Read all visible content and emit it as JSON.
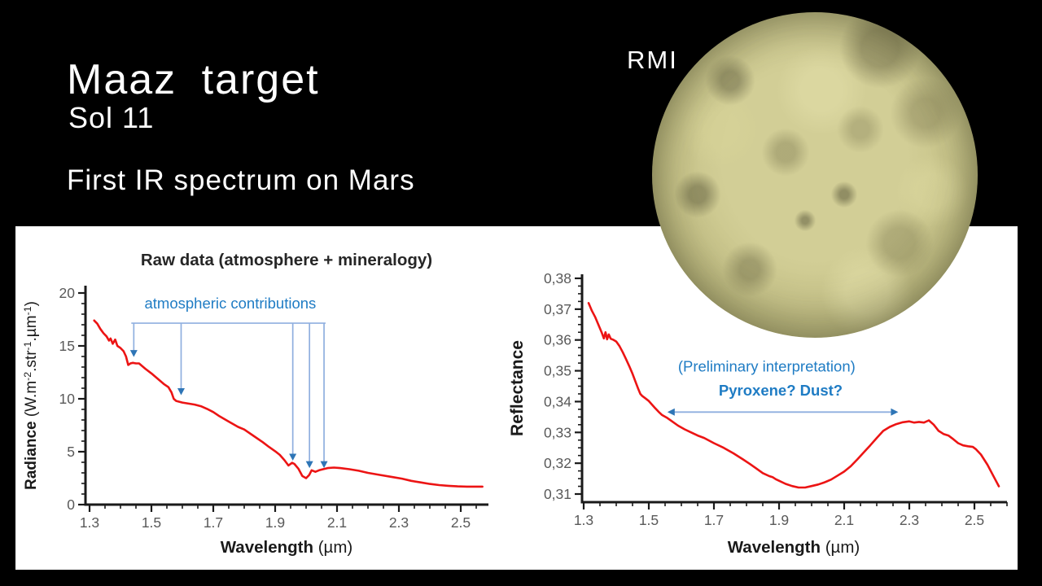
{
  "slide": {
    "title": "Maaz target",
    "subtitle": "Sol 11",
    "tagline": "First IR spectrum on Mars",
    "image_label": "RMI"
  },
  "colors": {
    "background": "#000000",
    "panel": "#ffffff",
    "text_white": "#ffffff",
    "curve_red": "#EC1414",
    "annotation_blue": "#1F7CC4",
    "annotation_light_blue": "#8FAFDF",
    "arrowhead_blue": "#2E75B6",
    "axis_black": "#1a1a1a",
    "tick_gray": "#595959",
    "title_dark": "#262626"
  },
  "chart_data": [
    {
      "type": "line",
      "title": "Raw data (atmosphere + mineralogy)",
      "xlabel_runs": [
        {
          "t": "Wavelength",
          "b": 1
        },
        {
          "t": " (µm)"
        }
      ],
      "ylabel_runs": [
        {
          "t": "Radiance",
          "b": 1
        },
        {
          "t": " (W.m"
        },
        {
          "t": "-2",
          "s": 1
        },
        {
          "t": ".str"
        },
        {
          "t": "-1",
          "s": 1
        },
        {
          "t": ".µm"
        },
        {
          "t": "-1",
          "s": 1
        },
        {
          "t": ")"
        }
      ],
      "xlim": [
        1.3,
        2.59
      ],
      "ylim": [
        0,
        20
      ],
      "xticks": [
        1.3,
        1.5,
        1.7,
        1.9,
        2.1,
        2.3,
        2.5
      ],
      "xtick_labels": [
        "1.3",
        "1.5",
        "1.7",
        "1.9",
        "2.1",
        "2.3",
        "2.5"
      ],
      "yticks": [
        0,
        5,
        10,
        15,
        20
      ],
      "ytick_labels": [
        "0",
        "5",
        "10",
        "15",
        "20"
      ],
      "x_minor_step": 0.05,
      "y_minor_step": 1,
      "legend": "none",
      "grid": false,
      "series": [
        {
          "name": "raw radiance spectrum",
          "points": [
            [
              1.315,
              17.4
            ],
            [
              1.325,
              17.1
            ],
            [
              1.335,
              16.6
            ],
            [
              1.345,
              16.2
            ],
            [
              1.355,
              15.9
            ],
            [
              1.363,
              15.5
            ],
            [
              1.368,
              15.7
            ],
            [
              1.375,
              15.2
            ],
            [
              1.383,
              15.6
            ],
            [
              1.39,
              15.0
            ],
            [
              1.4,
              14.8
            ],
            [
              1.41,
              14.5
            ],
            [
              1.418,
              14.0
            ],
            [
              1.425,
              13.2
            ],
            [
              1.432,
              13.35
            ],
            [
              1.44,
              13.4
            ],
            [
              1.45,
              13.35
            ],
            [
              1.46,
              13.35
            ],
            [
              1.47,
              13.1
            ],
            [
              1.48,
              12.85
            ],
            [
              1.5,
              12.4
            ],
            [
              1.52,
              11.9
            ],
            [
              1.54,
              11.4
            ],
            [
              1.555,
              11.1
            ],
            [
              1.565,
              10.6
            ],
            [
              1.572,
              10.0
            ],
            [
              1.58,
              9.8
            ],
            [
              1.6,
              9.65
            ],
            [
              1.62,
              9.55
            ],
            [
              1.64,
              9.45
            ],
            [
              1.66,
              9.3
            ],
            [
              1.68,
              9.05
            ],
            [
              1.7,
              8.75
            ],
            [
              1.72,
              8.35
            ],
            [
              1.75,
              7.85
            ],
            [
              1.78,
              7.35
            ],
            [
              1.8,
              7.1
            ],
            [
              1.83,
              6.5
            ],
            [
              1.86,
              5.9
            ],
            [
              1.88,
              5.45
            ],
            [
              1.9,
              5.05
            ],
            [
              1.915,
              4.7
            ],
            [
              1.93,
              4.2
            ],
            [
              1.943,
              3.7
            ],
            [
              1.955,
              3.95
            ],
            [
              1.962,
              3.85
            ],
            [
              1.975,
              3.4
            ],
            [
              1.988,
              2.7
            ],
            [
              2.0,
              2.5
            ],
            [
              2.01,
              2.8
            ],
            [
              2.018,
              3.25
            ],
            [
              2.03,
              3.1
            ],
            [
              2.042,
              3.25
            ],
            [
              2.055,
              3.35
            ],
            [
              2.07,
              3.45
            ],
            [
              2.09,
              3.5
            ],
            [
              2.11,
              3.45
            ],
            [
              2.14,
              3.35
            ],
            [
              2.17,
              3.2
            ],
            [
              2.2,
              3.0
            ],
            [
              2.24,
              2.8
            ],
            [
              2.28,
              2.6
            ],
            [
              2.31,
              2.45
            ],
            [
              2.34,
              2.25
            ],
            [
              2.37,
              2.1
            ],
            [
              2.4,
              1.95
            ],
            [
              2.43,
              1.85
            ],
            [
              2.46,
              1.78
            ],
            [
              2.49,
              1.72
            ],
            [
              2.52,
              1.7
            ],
            [
              2.55,
              1.7
            ],
            [
              2.57,
              1.7
            ]
          ]
        }
      ],
      "annotation": {
        "label": {
          "text": "atmospheric contributions",
          "x": 1.755,
          "y": 18.55
        },
        "bracket": {
          "y": 17.15,
          "x1": 1.435,
          "x2": 2.063
        },
        "arrows": [
          {
            "x": 1.443,
            "tip": 13.95
          },
          {
            "x": 1.596,
            "tip": 10.35
          },
          {
            "x": 1.957,
            "tip": 4.15
          },
          {
            "x": 2.011,
            "tip": 3.45
          },
          {
            "x": 2.058,
            "tip": 3.45
          }
        ]
      }
    },
    {
      "type": "line",
      "title": "",
      "xlabel_runs": [
        {
          "t": "Wavelength",
          "b": 1
        },
        {
          "t": " (µm)"
        }
      ],
      "ylabel_runs": [
        {
          "t": "Reflectance",
          "b": 1
        }
      ],
      "xlim": [
        1.3,
        2.6
      ],
      "ylim": [
        0.31,
        0.38
      ],
      "xticks": [
        1.3,
        1.5,
        1.7,
        1.9,
        2.1,
        2.3,
        2.5
      ],
      "xtick_labels": [
        "1.3",
        "1.5",
        "1.7",
        "1.9",
        "2.1",
        "2.3",
        "2.5"
      ],
      "yticks": [
        0.31,
        0.32,
        0.33,
        0.34,
        0.35,
        0.36,
        0.37,
        0.38
      ],
      "ytick_labels": [
        "0,31",
        "0,32",
        "0,33",
        "0,34",
        "0,35",
        "0,36",
        "0,37",
        "0,38"
      ],
      "x_minor_step": 0.05,
      "y_minor_step": 0.0025,
      "legend": "none",
      "grid": false,
      "series": [
        {
          "name": "reflectance spectrum",
          "points": [
            [
              1.315,
              0.372
            ],
            [
              1.325,
              0.3695
            ],
            [
              1.335,
              0.3675
            ],
            [
              1.345,
              0.365
            ],
            [
              1.355,
              0.3625
            ],
            [
              1.362,
              0.3605
            ],
            [
              1.367,
              0.3625
            ],
            [
              1.372,
              0.3602
            ],
            [
              1.377,
              0.3618
            ],
            [
              1.383,
              0.3604
            ],
            [
              1.39,
              0.3601
            ],
            [
              1.4,
              0.3595
            ],
            [
              1.41,
              0.358
            ],
            [
              1.42,
              0.356
            ],
            [
              1.43,
              0.3538
            ],
            [
              1.44,
              0.3515
            ],
            [
              1.45,
              0.349
            ],
            [
              1.46,
              0.3462
            ],
            [
              1.468,
              0.344
            ],
            [
              1.474,
              0.3425
            ],
            [
              1.48,
              0.3418
            ],
            [
              1.49,
              0.341
            ],
            [
              1.5,
              0.3402
            ],
            [
              1.51,
              0.339
            ],
            [
              1.52,
              0.3378
            ],
            [
              1.53,
              0.3367
            ],
            [
              1.54,
              0.3357
            ],
            [
              1.555,
              0.3348
            ],
            [
              1.57,
              0.3337
            ],
            [
              1.59,
              0.3322
            ],
            [
              1.61,
              0.331
            ],
            [
              1.63,
              0.33
            ],
            [
              1.65,
              0.329
            ],
            [
              1.67,
              0.3282
            ],
            [
              1.7,
              0.3265
            ],
            [
              1.73,
              0.325
            ],
            [
              1.76,
              0.3232
            ],
            [
              1.79,
              0.3212
            ],
            [
              1.81,
              0.3198
            ],
            [
              1.83,
              0.3183
            ],
            [
              1.85,
              0.3168
            ],
            [
              1.87,
              0.3158
            ],
            [
              1.88,
              0.3155
            ],
            [
              1.89,
              0.3148
            ],
            [
              1.9,
              0.3143
            ],
            [
              1.92,
              0.3133
            ],
            [
              1.94,
              0.3126
            ],
            [
              1.96,
              0.3121
            ],
            [
              1.98,
              0.3121
            ],
            [
              2.0,
              0.3126
            ],
            [
              2.02,
              0.3131
            ],
            [
              2.04,
              0.3138
            ],
            [
              2.06,
              0.3147
            ],
            [
              2.08,
              0.316
            ],
            [
              2.1,
              0.3173
            ],
            [
              2.12,
              0.319
            ],
            [
              2.14,
              0.3212
            ],
            [
              2.16,
              0.3235
            ],
            [
              2.18,
              0.3258
            ],
            [
              2.2,
              0.3282
            ],
            [
              2.22,
              0.3305
            ],
            [
              2.24,
              0.3318
            ],
            [
              2.26,
              0.3327
            ],
            [
              2.28,
              0.3333
            ],
            [
              2.3,
              0.3336
            ],
            [
              2.315,
              0.3332
            ],
            [
              2.33,
              0.3334
            ],
            [
              2.345,
              0.3332
            ],
            [
              2.36,
              0.3339
            ],
            [
              2.375,
              0.3325
            ],
            [
              2.39,
              0.3305
            ],
            [
              2.405,
              0.3295
            ],
            [
              2.42,
              0.329
            ],
            [
              2.435,
              0.3278
            ],
            [
              2.45,
              0.3265
            ],
            [
              2.465,
              0.3258
            ],
            [
              2.48,
              0.3255
            ],
            [
              2.495,
              0.3253
            ],
            [
              2.505,
              0.3245
            ],
            [
              2.52,
              0.3228
            ],
            [
              2.54,
              0.3195
            ],
            [
              2.56,
              0.3155
            ],
            [
              2.575,
              0.3125
            ]
          ]
        }
      ],
      "annotation": {
        "texts": [
          {
            "text": "(Preliminary interpretation)",
            "x": 1.862,
            "y": 0.3497,
            "bold": false
          },
          {
            "text": "Pyroxene? Dust?",
            "x": 1.905,
            "y": 0.342,
            "bold": true
          }
        ],
        "span_arrow": {
          "y": 0.3366,
          "x1": 1.557,
          "x2": 2.266
        }
      }
    }
  ]
}
